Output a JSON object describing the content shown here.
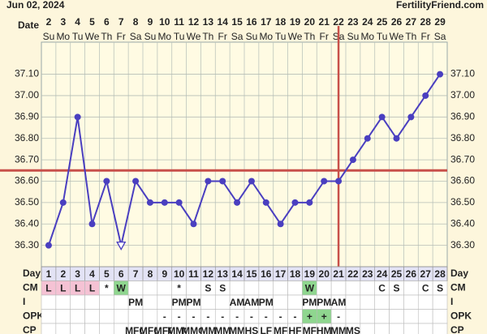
{
  "chart_data": {
    "type": "line",
    "title": "Jun 02, 2024",
    "source": "FertilityFriend.com",
    "date_label": "Date",
    "day_label": "Day",
    "dates": [
      2,
      3,
      4,
      5,
      6,
      7,
      8,
      9,
      10,
      11,
      12,
      13,
      14,
      15,
      16,
      17,
      18,
      19,
      20,
      21,
      22,
      23,
      24,
      25,
      26,
      27,
      28,
      29
    ],
    "weekdays": [
      "Su",
      "Mo",
      "Tu",
      "We",
      "Th",
      "Fr",
      "Sa",
      "Su",
      "Mo",
      "Tu",
      "We",
      "Th",
      "Fr",
      "Sa",
      "Su",
      "Mo",
      "Tu",
      "We",
      "Th",
      "Fr",
      "Sa",
      "Su",
      "Mo",
      "Tu",
      "We",
      "Th",
      "Fr",
      "Sa"
    ],
    "days": [
      1,
      2,
      3,
      4,
      5,
      6,
      7,
      8,
      9,
      10,
      11,
      12,
      13,
      14,
      15,
      16,
      17,
      18,
      19,
      20,
      21,
      22,
      23,
      24,
      25,
      26,
      27,
      28
    ],
    "series": [
      {
        "color": "#4a3fc0",
        "values": [
          36.3,
          36.5,
          36.9,
          36.4,
          36.6,
          36.3,
          36.6,
          36.5,
          36.5,
          36.5,
          36.4,
          36.6,
          36.6,
          36.5,
          36.6,
          36.5,
          36.4,
          36.5,
          36.5,
          36.6,
          36.6,
          36.7,
          36.8,
          36.9,
          36.8,
          36.9,
          37.0,
          37.1
        ]
      }
    ],
    "open_marker_days": [
      6
    ],
    "coverline": 36.65,
    "ovulation_day": 21,
    "line_color": "#c8504a",
    "ylim": [
      36.2,
      37.25
    ],
    "yticks": [
      {
        "value": 36.3,
        "label": "36.30"
      },
      {
        "value": 36.4,
        "label": "36.40"
      },
      {
        "value": 36.5,
        "label": "36.50"
      },
      {
        "value": 36.6,
        "label": "36.60"
      },
      {
        "value": 36.7,
        "label": "36.70"
      },
      {
        "value": 36.8,
        "label": "36.80"
      },
      {
        "value": 36.9,
        "label": "36.90"
      },
      {
        "value": 37.0,
        "label": "37.00"
      },
      {
        "value": 37.1,
        "label": "37.10"
      }
    ],
    "grid": true,
    "rows": [
      {
        "label": "CM",
        "colors": {
          "L": "#f5c2d4",
          "W": "#8fd68f"
        },
        "cells": [
          "L",
          "L",
          "L",
          "L",
          "*",
          "W",
          null,
          null,
          null,
          "*",
          null,
          "S",
          "S",
          null,
          null,
          null,
          null,
          null,
          "W",
          null,
          null,
          null,
          null,
          "C",
          "S",
          null,
          "C",
          "S"
        ]
      },
      {
        "label": "I",
        "colors": {},
        "cells": [
          null,
          null,
          null,
          null,
          null,
          null,
          "PM",
          null,
          null,
          "PM",
          "PM",
          null,
          null,
          "AM",
          "AM",
          "PM",
          null,
          null,
          "PM",
          "PM",
          "AM",
          null,
          null,
          null,
          null,
          null,
          null,
          null
        ]
      },
      {
        "label": "OPK",
        "colors": {
          "+": "#8fd68f"
        },
        "cells": [
          null,
          null,
          null,
          null,
          null,
          null,
          null,
          null,
          "-",
          "-",
          "-",
          "-",
          "-",
          "-",
          "-",
          "-",
          "-",
          "-",
          "+",
          "+",
          "-",
          null,
          null,
          null,
          null,
          null,
          null,
          null
        ]
      },
      {
        "label": "CP",
        "colors": {},
        "cells": [
          null,
          null,
          null,
          null,
          null,
          null,
          "MFC",
          "MFC",
          "MFC",
          "MMC",
          "MMC",
          "MM",
          "MM",
          "MM",
          "HS",
          "LF",
          "MF",
          "HF",
          "MF",
          "HM",
          "MM",
          "MS",
          null,
          null,
          null,
          null,
          null,
          null
        ]
      }
    ]
  }
}
